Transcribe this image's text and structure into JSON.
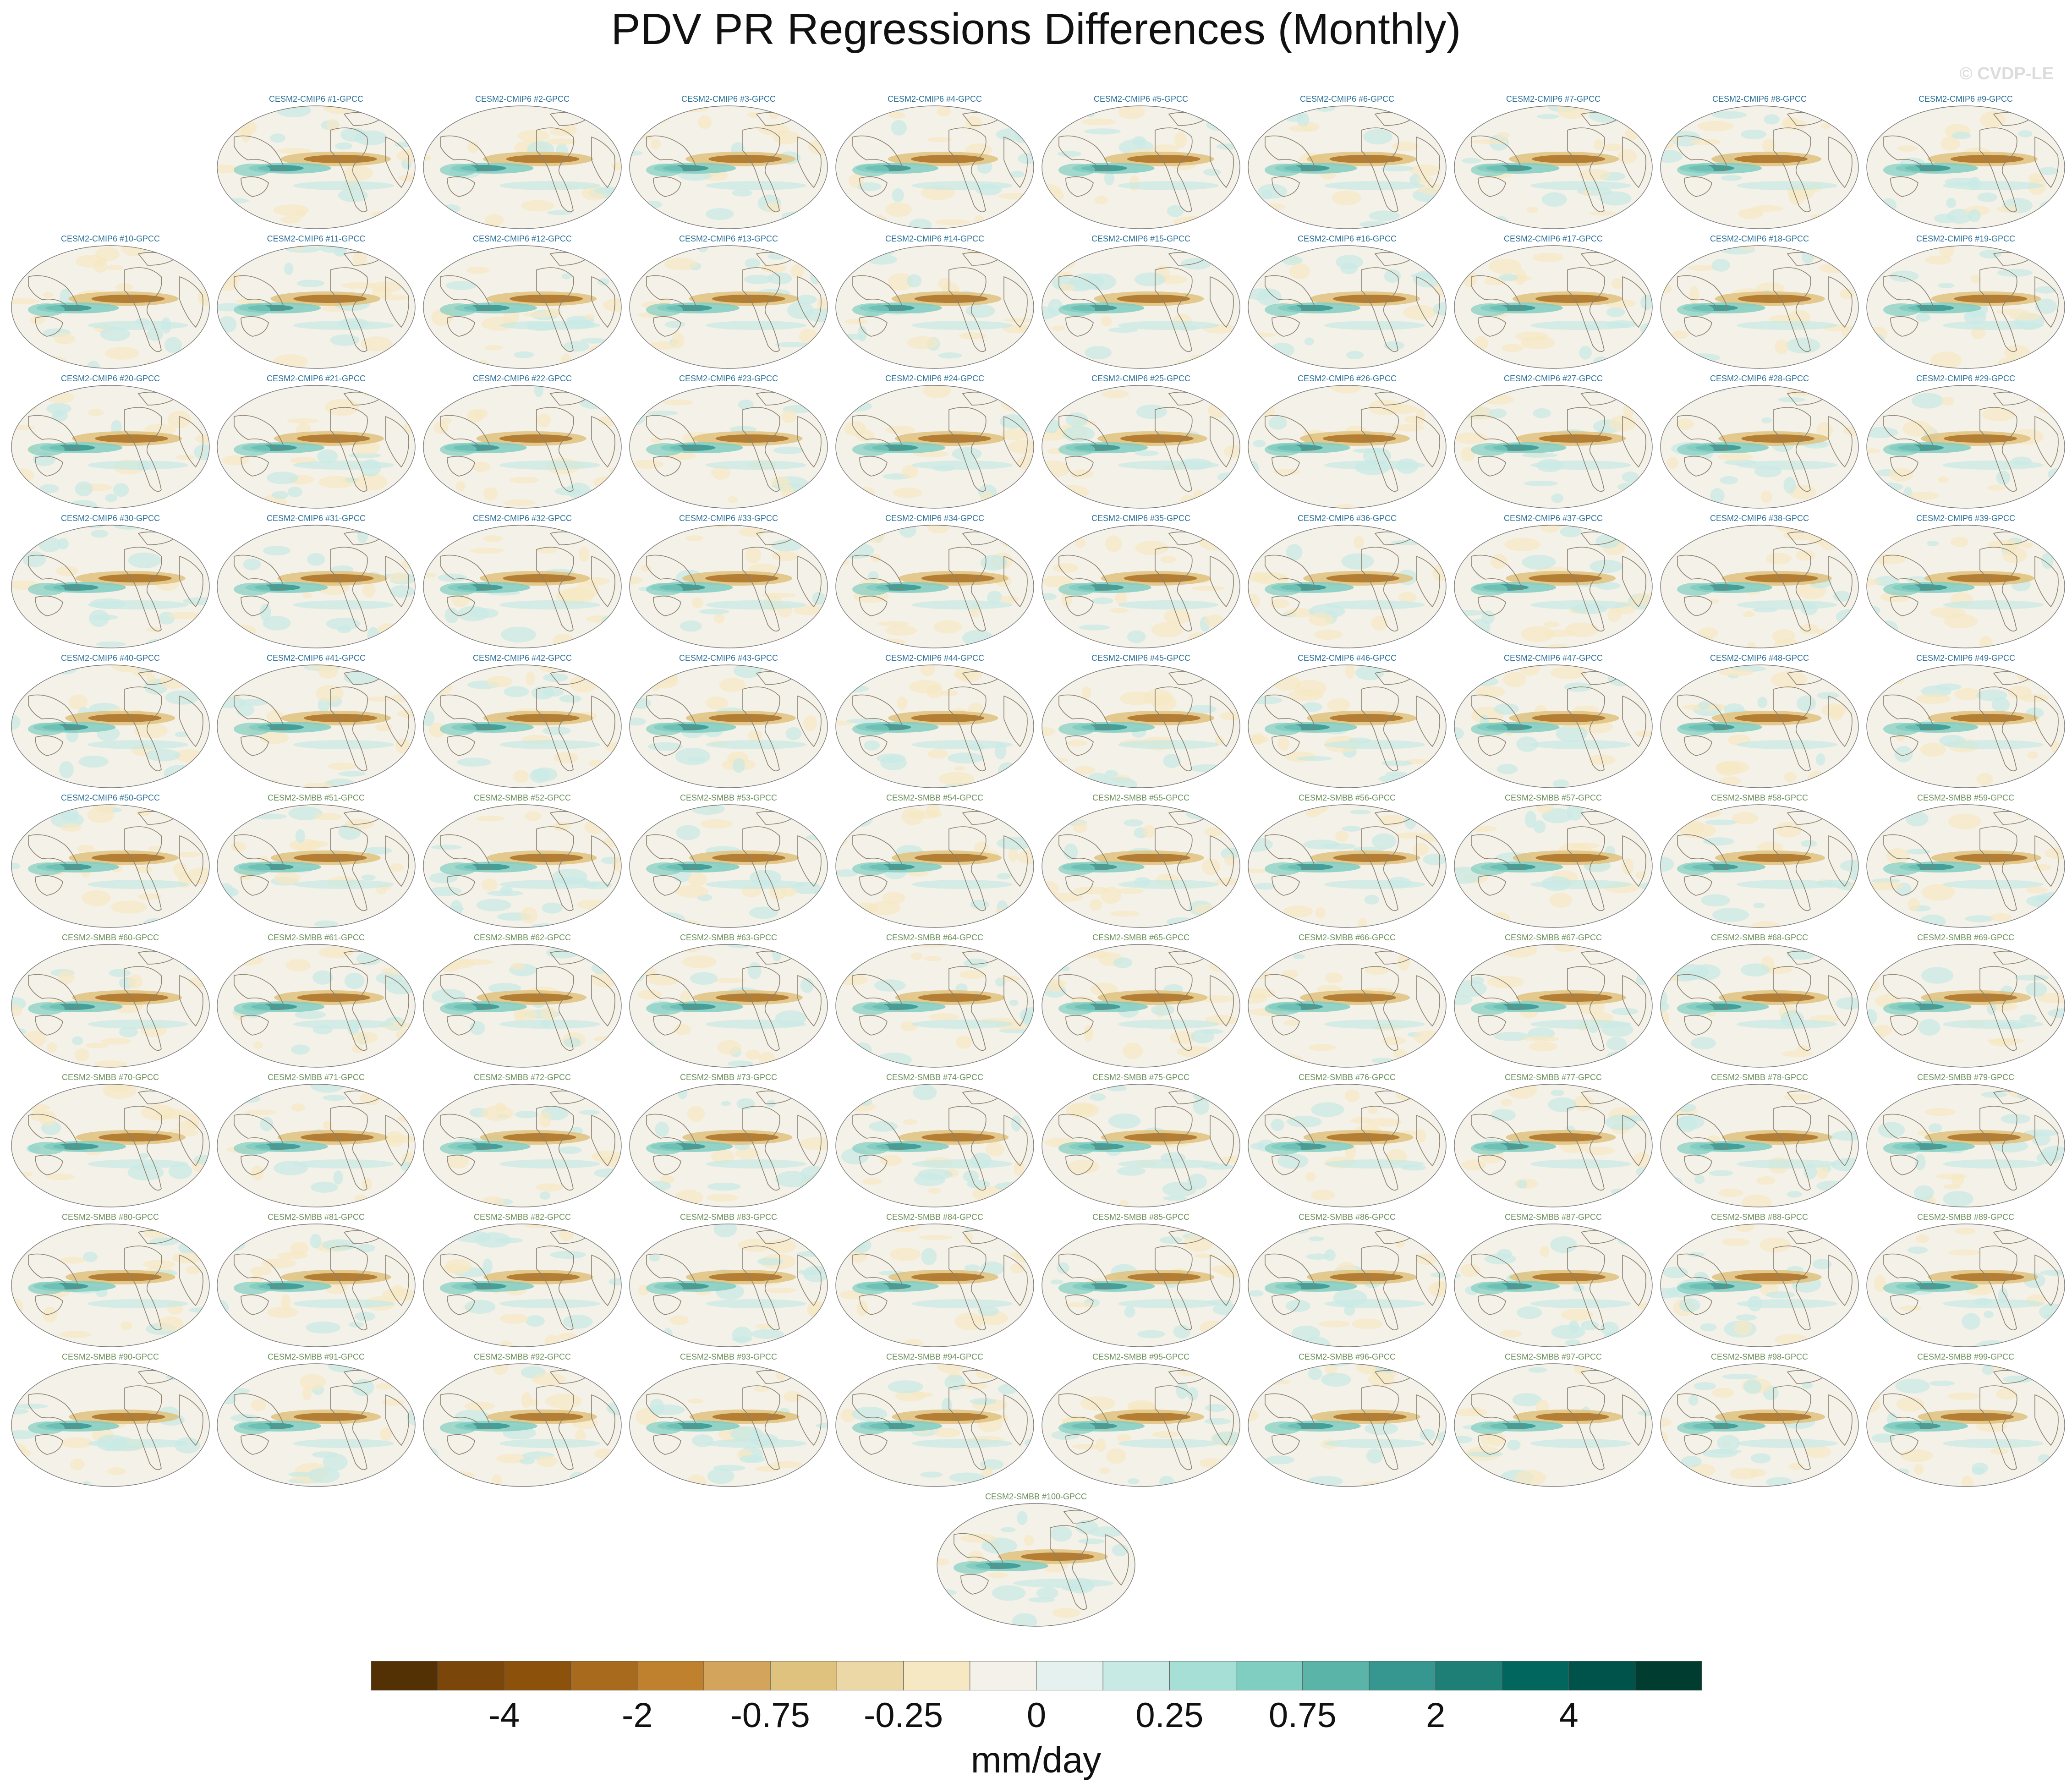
{
  "title": "PDV PR Regressions Differences (Monthly)",
  "watermark": "© CVDP-LE",
  "chart_data": {
    "type": "heatmap",
    "projection": "global map (Robinson-like), Pacific-centered",
    "variable": "precipitation regression difference",
    "title": "PDV PR Regressions Differences (Monthly)",
    "panels": [
      "CESM2-CMIP6 #1-GPCC",
      "CESM2-CMIP6 #2-GPCC",
      "CESM2-CMIP6 #3-GPCC",
      "CESM2-CMIP6 #4-GPCC",
      "CESM2-CMIP6 #5-GPCC",
      "CESM2-CMIP6 #6-GPCC",
      "CESM2-CMIP6 #7-GPCC",
      "CESM2-CMIP6 #8-GPCC",
      "CESM2-CMIP6 #9-GPCC",
      "CESM2-CMIP6 #10-GPCC",
      "CESM2-CMIP6 #11-GPCC",
      "CESM2-CMIP6 #12-GPCC",
      "CESM2-CMIP6 #13-GPCC",
      "CESM2-CMIP6 #14-GPCC",
      "CESM2-CMIP6 #15-GPCC",
      "CESM2-CMIP6 #16-GPCC",
      "CESM2-CMIP6 #17-GPCC",
      "CESM2-CMIP6 #18-GPCC",
      "CESM2-CMIP6 #19-GPCC",
      "CESM2-CMIP6 #20-GPCC",
      "CESM2-CMIP6 #21-GPCC",
      "CESM2-CMIP6 #22-GPCC",
      "CESM2-CMIP6 #23-GPCC",
      "CESM2-CMIP6 #24-GPCC",
      "CESM2-CMIP6 #25-GPCC",
      "CESM2-CMIP6 #26-GPCC",
      "CESM2-CMIP6 #27-GPCC",
      "CESM2-CMIP6 #28-GPCC",
      "CESM2-CMIP6 #29-GPCC",
      "CESM2-CMIP6 #30-GPCC",
      "CESM2-CMIP6 #31-GPCC",
      "CESM2-CMIP6 #32-GPCC",
      "CESM2-CMIP6 #33-GPCC",
      "CESM2-CMIP6 #34-GPCC",
      "CESM2-CMIP6 #35-GPCC",
      "CESM2-CMIP6 #36-GPCC",
      "CESM2-CMIP6 #37-GPCC",
      "CESM2-CMIP6 #38-GPCC",
      "CESM2-CMIP6 #39-GPCC",
      "CESM2-CMIP6 #40-GPCC",
      "CESM2-CMIP6 #41-GPCC",
      "CESM2-CMIP6 #42-GPCC",
      "CESM2-CMIP6 #43-GPCC",
      "CESM2-CMIP6 #44-GPCC",
      "CESM2-CMIP6 #45-GPCC",
      "CESM2-CMIP6 #46-GPCC",
      "CESM2-CMIP6 #47-GPCC",
      "CESM2-CMIP6 #48-GPCC",
      "CESM2-CMIP6 #49-GPCC",
      "CESM2-CMIP6 #50-GPCC",
      "CESM2-SMBB #51-GPCC",
      "CESM2-SMBB #52-GPCC",
      "CESM2-SMBB #53-GPCC",
      "CESM2-SMBB #54-GPCC",
      "CESM2-SMBB #55-GPCC",
      "CESM2-SMBB #56-GPCC",
      "CESM2-SMBB #57-GPCC",
      "CESM2-SMBB #58-GPCC",
      "CESM2-SMBB #59-GPCC",
      "CESM2-SMBB #60-GPCC",
      "CESM2-SMBB #61-GPCC",
      "CESM2-SMBB #62-GPCC",
      "CESM2-SMBB #63-GPCC",
      "CESM2-SMBB #64-GPCC",
      "CESM2-SMBB #65-GPCC",
      "CESM2-SMBB #66-GPCC",
      "CESM2-SMBB #67-GPCC",
      "CESM2-SMBB #68-GPCC",
      "CESM2-SMBB #69-GPCC",
      "CESM2-SMBB #70-GPCC",
      "CESM2-SMBB #71-GPCC",
      "CESM2-SMBB #72-GPCC",
      "CESM2-SMBB #73-GPCC",
      "CESM2-SMBB #74-GPCC",
      "CESM2-SMBB #75-GPCC",
      "CESM2-SMBB #76-GPCC",
      "CESM2-SMBB #77-GPCC",
      "CESM2-SMBB #78-GPCC",
      "CESM2-SMBB #79-GPCC",
      "CESM2-SMBB #80-GPCC",
      "CESM2-SMBB #81-GPCC",
      "CESM2-SMBB #82-GPCC",
      "CESM2-SMBB #83-GPCC",
      "CESM2-SMBB #84-GPCC",
      "CESM2-SMBB #85-GPCC",
      "CESM2-SMBB #86-GPCC",
      "CESM2-SMBB #87-GPCC",
      "CESM2-SMBB #88-GPCC",
      "CESM2-SMBB #89-GPCC",
      "CESM2-SMBB #90-GPCC",
      "CESM2-SMBB #91-GPCC",
      "CESM2-SMBB #92-GPCC",
      "CESM2-SMBB #93-GPCC",
      "CESM2-SMBB #94-GPCC",
      "CESM2-SMBB #95-GPCC",
      "CESM2-SMBB #96-GPCC",
      "CESM2-SMBB #97-GPCC",
      "CESM2-SMBB #98-GPCC",
      "CESM2-SMBB #99-GPCC",
      "CESM2-SMBB #100-GPCC"
    ],
    "colorbar": {
      "tick_labels": [
        "-4",
        "-2",
        "-0.75",
        "-0.25",
        "0",
        "0.25",
        "0.75",
        "2",
        "4"
      ],
      "units": "mm/day",
      "colors": [
        "#543005",
        "#7a4609",
        "#8c510a",
        "#a86b1e",
        "#bf812d",
        "#d2a45c",
        "#dfc27d",
        "#ecd8a6",
        "#f6e8c3",
        "#f3f1ea",
        "#e4f1ee",
        "#c7eae5",
        "#a6dfd6",
        "#80cdc1",
        "#5ab4a8",
        "#35978f",
        "#1d7f76",
        "#01665e",
        "#00534b",
        "#003c30"
      ]
    },
    "group_title_colors": {
      "CESM2-CMIP6": "#2a6f97",
      "CESM2-SMBB": "#6b8e5a"
    }
  }
}
